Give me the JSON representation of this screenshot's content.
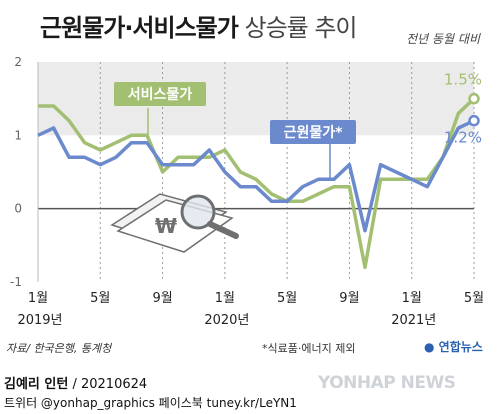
{
  "title": {
    "main": "근원물가·서비스물가",
    "sub": "상승률 추이"
  },
  "unit_label": "전년 동월 대비",
  "source": "자료/ 한국은행, 통계청",
  "footnote": "*식료품·에너지 제외",
  "logo_text": "연합뉴스",
  "credit_line1": {
    "name": "김예리 인턴",
    "date": "/ 20210624"
  },
  "credit_line2": "트위터 @yonhap_graphics  페이스북 tuney.kr/LeYN1",
  "watermark": "YONHAP NEWS",
  "colors": {
    "service": "#a3bf72",
    "core": "#6b8acd",
    "band": "#ebebeb",
    "zero_line": "#555555"
  },
  "icons": [
    "won-money-magnifier-icon"
  ],
  "chart_data": {
    "type": "line",
    "x": [
      "2019-01",
      "2019-02",
      "2019-03",
      "2019-04",
      "2019-05",
      "2019-06",
      "2019-07",
      "2019-08",
      "2019-09",
      "2019-10",
      "2019-11",
      "2019-12",
      "2020-01",
      "2020-02",
      "2020-03",
      "2020-04",
      "2020-05",
      "2020-06",
      "2020-07",
      "2020-08",
      "2020-09",
      "2020-10",
      "2020-11",
      "2020-12",
      "2021-01",
      "2021-02",
      "2021-03",
      "2021-04",
      "2021-05"
    ],
    "x_tick_labels": [
      {
        "index": 0,
        "label": "1월",
        "year": "2019년"
      },
      {
        "index": 4,
        "label": "5월"
      },
      {
        "index": 8,
        "label": "9월"
      },
      {
        "index": 12,
        "label": "1월",
        "year": "2020년"
      },
      {
        "index": 16,
        "label": "5월"
      },
      {
        "index": 20,
        "label": "9월"
      },
      {
        "index": 24,
        "label": "1월",
        "year": "2021년"
      },
      {
        "index": 28,
        "label": "5월"
      }
    ],
    "y_ticks": [
      "2",
      "1",
      "0",
      "-1"
    ],
    "ylim": [
      -1,
      2
    ],
    "series": [
      {
        "name": "서비스물가",
        "color": "#a3bf72",
        "end_label": "1.5%",
        "values": [
          1.4,
          1.4,
          1.2,
          0.9,
          0.8,
          0.9,
          1.0,
          1.0,
          0.5,
          0.7,
          0.7,
          0.7,
          0.8,
          0.5,
          0.4,
          0.2,
          0.1,
          0.1,
          0.2,
          0.3,
          0.3,
          -0.8,
          0.4,
          0.4,
          0.4,
          0.4,
          0.7,
          1.3,
          1.5
        ]
      },
      {
        "name": "근원물가*",
        "color": "#6b8acd",
        "end_label": "1.2%",
        "values": [
          1.0,
          1.1,
          0.7,
          0.7,
          0.6,
          0.7,
          0.9,
          0.9,
          0.6,
          0.6,
          0.6,
          0.8,
          0.5,
          0.3,
          0.3,
          0.1,
          0.1,
          0.3,
          0.4,
          0.4,
          0.6,
          -0.3,
          0.6,
          0.5,
          0.4,
          0.3,
          0.7,
          1.1,
          1.2
        ]
      }
    ],
    "shaded_band": [
      1,
      2
    ],
    "grid": "vertical dashed lines at month ticks"
  }
}
